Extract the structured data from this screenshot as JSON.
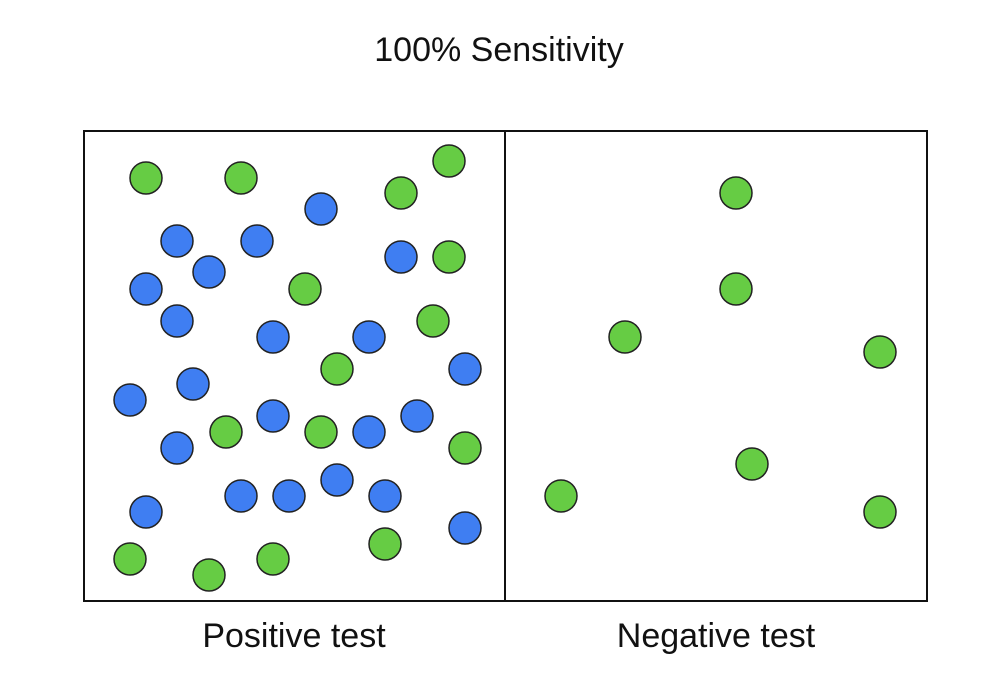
{
  "title": "100% Sensitivity",
  "panels": {
    "positive": {
      "label": "Positive test"
    },
    "negative": {
      "label": "Negative test"
    }
  },
  "colors": {
    "green": "#66CC44",
    "blue": "#3F7EF2",
    "outline": "#222222",
    "frame": "#111111"
  }
}
